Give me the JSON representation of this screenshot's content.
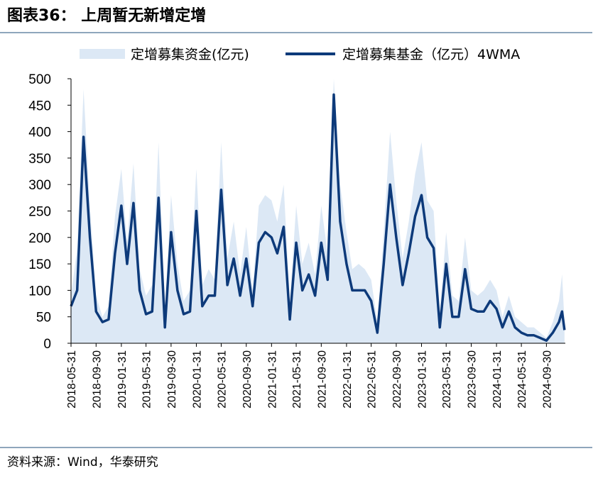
{
  "chart_data": {
    "type": "line",
    "title": "图表36： 上周暂无新增定增",
    "source": "资料来源：Wind，华泰研究",
    "x": [
      "2018-05-31",
      "2018-06-30",
      "2018-07-31",
      "2018-08-31",
      "2018-09-30",
      "2018-10-31",
      "2018-11-30",
      "2018-12-31",
      "2019-01-31",
      "2019-02-28",
      "2019-03-31",
      "2019-04-30",
      "2019-05-31",
      "2019-06-30",
      "2019-07-31",
      "2019-08-31",
      "2019-09-30",
      "2019-10-31",
      "2019-11-30",
      "2019-12-31",
      "2020-01-31",
      "2020-02-29",
      "2020-03-31",
      "2020-04-30",
      "2020-05-31",
      "2020-06-30",
      "2020-07-31",
      "2020-08-31",
      "2020-09-30",
      "2020-10-31",
      "2020-11-30",
      "2020-12-31",
      "2021-01-31",
      "2021-02-28",
      "2021-03-31",
      "2021-04-30",
      "2021-05-31",
      "2021-06-30",
      "2021-07-31",
      "2021-08-31",
      "2021-09-30",
      "2021-10-31",
      "2021-11-30",
      "2021-12-31",
      "2022-01-31",
      "2022-02-28",
      "2022-03-31",
      "2022-04-30",
      "2022-05-31",
      "2022-06-30",
      "2022-07-31",
      "2022-08-31",
      "2022-09-30",
      "2022-10-31",
      "2022-11-30",
      "2022-12-31",
      "2023-01-31",
      "2023-02-28",
      "2023-03-31",
      "2023-04-30",
      "2023-05-31",
      "2023-06-30",
      "2023-07-31",
      "2023-08-31",
      "2023-09-30",
      "2023-10-31",
      "2023-11-30",
      "2023-12-31",
      "2024-01-31",
      "2024-02-29",
      "2024-03-31",
      "2024-04-30",
      "2024-05-31",
      "2024-06-30",
      "2024-07-31",
      "2024-08-31",
      "2024-09-30",
      "2024-10-31",
      "2024-11-30",
      "2024-12-15",
      "2024-12-27"
    ],
    "series": [
      {
        "name": "定增募集资金(亿元)",
        "kind": "area",
        "color": "#dce8f5",
        "values": [
          90,
          180,
          480,
          260,
          90,
          50,
          70,
          240,
          330,
          190,
          340,
          140,
          90,
          110,
          380,
          60,
          280,
          150,
          80,
          100,
          330,
          110,
          140,
          120,
          380,
          160,
          230,
          130,
          220,
          100,
          260,
          280,
          270,
          230,
          300,
          80,
          260,
          150,
          190,
          130,
          260,
          170,
          500,
          300,
          210,
          140,
          150,
          140,
          120,
          40,
          210,
          400,
          270,
          160,
          230,
          320,
          380,
          270,
          250,
          60,
          210,
          90,
          80,
          200,
          100,
          90,
          100,
          120,
          100,
          50,
          90,
          50,
          40,
          30,
          30,
          20,
          10,
          40,
          80,
          130,
          40
        ]
      },
      {
        "name": "定增募集基金（亿元）4WMA",
        "kind": "line",
        "color": "#0d3a7a",
        "values": [
          70,
          100,
          390,
          200,
          60,
          40,
          45,
          170,
          260,
          150,
          265,
          100,
          55,
          60,
          275,
          30,
          210,
          100,
          55,
          60,
          250,
          70,
          90,
          90,
          290,
          110,
          160,
          90,
          160,
          70,
          190,
          210,
          200,
          170,
          220,
          45,
          190,
          100,
          130,
          90,
          190,
          120,
          470,
          230,
          150,
          100,
          100,
          100,
          80,
          20,
          150,
          300,
          200,
          110,
          170,
          240,
          280,
          200,
          180,
          30,
          150,
          50,
          50,
          140,
          65,
          60,
          60,
          80,
          65,
          30,
          60,
          30,
          20,
          15,
          15,
          10,
          5,
          20,
          40,
          60,
          25
        ]
      }
    ],
    "xlim": [
      "2018-05-31",
      "2024-12-31"
    ],
    "xticks": [
      "2018-05-31",
      "2018-09-30",
      "2019-01-31",
      "2019-05-31",
      "2019-09-30",
      "2020-01-31",
      "2020-05-31",
      "2020-09-30",
      "2021-01-31",
      "2021-05-31",
      "2021-09-30",
      "2022-01-31",
      "2022-05-31",
      "2022-09-30",
      "2023-01-31",
      "2023-05-31",
      "2023-09-30",
      "2024-01-31",
      "2024-05-31",
      "2024-09-30"
    ],
    "ylim": [
      0,
      500
    ],
    "yticks": [
      0,
      50,
      100,
      150,
      200,
      250,
      300,
      350,
      400,
      450,
      500
    ]
  }
}
